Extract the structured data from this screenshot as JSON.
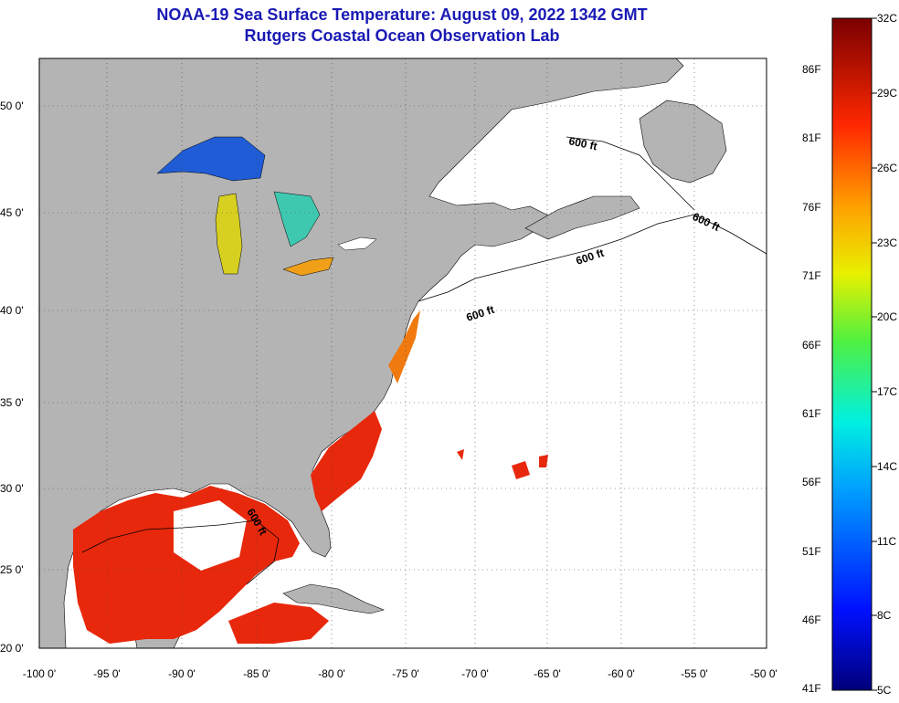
{
  "title_line1": "NOAA-19 Sea Surface Temperature:  August 09, 2022 1342 GMT",
  "title_line2": "Rutgers Coastal Ocean Observation Lab",
  "map": {
    "lon_ticks": [
      "-100 0'",
      "-95 0'",
      "-90 0'",
      "-85 0'",
      "-80 0'",
      "-75 0'",
      "-70 0'",
      "-65 0'",
      "-60 0'",
      "-55 0'",
      "-50 0'"
    ],
    "lat_ticks": [
      "50 0'",
      "45 0'",
      "40 0'",
      "35 0'",
      "30 0'",
      "25 0'",
      "20 0'"
    ],
    "contour_label": "600 ft",
    "land_color": "#b4b4b4",
    "ocean_color": "#ffffff"
  },
  "colorbar": {
    "celsius_labels": [
      "32C",
      "29C",
      "26C",
      "23C",
      "20C",
      "17C",
      "14C",
      "11C",
      "8C",
      "5C"
    ],
    "fahrenheit_labels": [
      "86F",
      "81F",
      "76F",
      "71F",
      "66F",
      "61F",
      "56F",
      "51F",
      "46F",
      "41F"
    ]
  }
}
